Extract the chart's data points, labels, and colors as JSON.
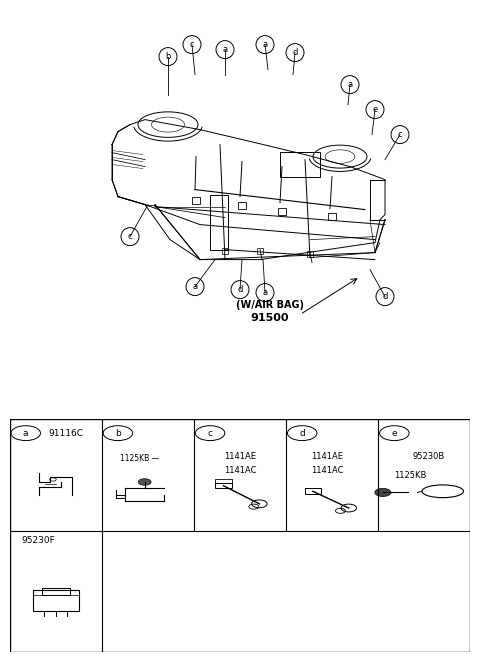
{
  "bg_color": "#ffffff",
  "lc": "#000000",
  "figsize": [
    4.8,
    6.55
  ],
  "dpi": 100,
  "car_label_line1": "(W/AIR BAG)",
  "car_label_line2": "91500",
  "col_a_header": "91116C",
  "col_b_part1": "1125KB",
  "col_c_part1": "1141AE",
  "col_c_part2": "1141AC",
  "col_d_part1": "1141AE",
  "col_d_part2": "1141AC",
  "col_e_part1": "95230B",
  "col_e_part2": "1125KB",
  "row1_header": "95230F",
  "gray": "#888888",
  "light_gray": "#aaaaaa"
}
